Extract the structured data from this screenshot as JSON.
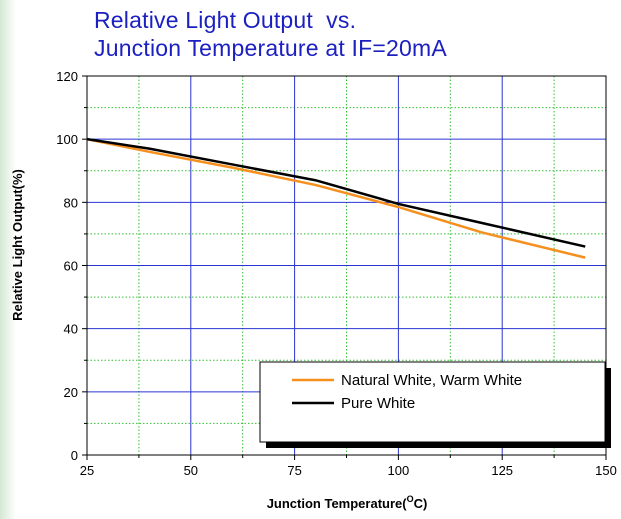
{
  "chart_data": {
    "type": "line",
    "title_lines": [
      "Relative Light Output  vs.",
      "Junction Temperature at IF=20mA"
    ],
    "xlabel": "Junction Temperature(",
    "xlabel_superscript": "O",
    "xlabel_suffix": "C)",
    "ylabel": "Relative Light Output(%)",
    "xlim": [
      25,
      150
    ],
    "ylim": [
      0,
      120
    ],
    "x_ticks": [
      25,
      50,
      75,
      100,
      125,
      150
    ],
    "y_ticks": [
      0,
      20,
      40,
      60,
      80,
      100,
      120
    ],
    "grid": true,
    "legend_position": "lower-right",
    "series": [
      {
        "name": "Natural White, Warm White",
        "color": "#f5901e",
        "x": [
          25,
          40,
          60,
          80,
          100,
          120,
          145
        ],
        "y": [
          100,
          96,
          91,
          85.5,
          78.5,
          70.5,
          62.5
        ]
      },
      {
        "name": "Pure White",
        "color": "#000000",
        "x": [
          25,
          40,
          60,
          80,
          100,
          120,
          145
        ],
        "y": [
          100,
          97,
          92,
          87,
          79.5,
          73.5,
          66
        ]
      }
    ]
  },
  "colors": {
    "title": "#1c20c0",
    "major_grid": "#2a34d0",
    "minor_grid": "#33c033"
  }
}
